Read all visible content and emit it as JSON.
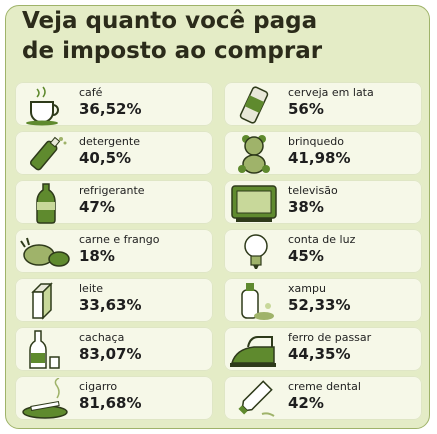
{
  "title_line1": "Veja quanto você paga",
  "title_line2": "de imposto ao comprar",
  "colors": {
    "background": "#e4ecc6",
    "cell": "#f6f8e8",
    "icon_green": "#5f8a2e",
    "icon_dark": "#2e3a1a"
  },
  "items_left": [
    {
      "name": "café",
      "value": "36,52%",
      "icon": "coffee-cup-icon"
    },
    {
      "name": "detergente",
      "value": "40,5%",
      "icon": "detergent-bottle-icon"
    },
    {
      "name": "refrigerante",
      "value": "47%",
      "icon": "soda-bottle-icon"
    },
    {
      "name": "carne e frango",
      "value": "18%",
      "icon": "meat-chicken-icon"
    },
    {
      "name": "leite",
      "value": "33,63%",
      "icon": "milk-carton-icon"
    },
    {
      "name": "cachaça",
      "value": "83,07%",
      "icon": "cachaca-bottle-icon"
    },
    {
      "name": "cigarro",
      "value": "81,68%",
      "icon": "cigarette-ashtray-icon"
    }
  ],
  "items_right": [
    {
      "name": "cerveja em lata",
      "value": "56%",
      "icon": "beer-can-icon"
    },
    {
      "name": "brinquedo",
      "value": "41,98%",
      "icon": "teddy-bear-icon"
    },
    {
      "name": "televisão",
      "value": "38%",
      "icon": "television-icon"
    },
    {
      "name": "conta de luz",
      "value": "45%",
      "icon": "light-bulb-icon"
    },
    {
      "name": "xampu",
      "value": "52,33%",
      "icon": "shampoo-bottle-icon"
    },
    {
      "name": "ferro de passar",
      "value": "44,35%",
      "icon": "clothes-iron-icon"
    },
    {
      "name": "creme dental",
      "value": "42%",
      "icon": "toothpaste-icon"
    }
  ]
}
